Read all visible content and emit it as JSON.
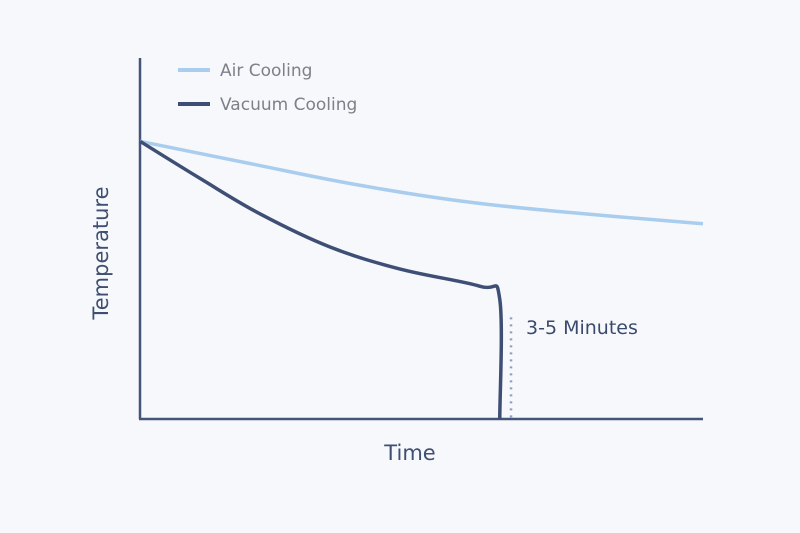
{
  "chart_data": {
    "type": "line",
    "title": "",
    "xlabel": "Time",
    "ylabel": "Temperature",
    "xlim": [
      0,
      100
    ],
    "ylim": [
      0,
      130
    ],
    "grid": false,
    "legend_position": "top-left",
    "series": [
      {
        "name": "Air Cooling",
        "color": "#a9cdee",
        "x": [
          0,
          19.5,
          37.3,
          55.1,
          72.9,
          100
        ],
        "y": [
          100,
          92,
          84.8,
          79,
          75,
          70.3
        ]
      },
      {
        "name": "Vacuum Cooling",
        "color": "#3e4e75",
        "x": [
          0,
          10.7,
          21.3,
          33.7,
          46.2,
          60.4,
          63.9,
          63.9
        ],
        "y": [
          100,
          86.6,
          73.9,
          62,
          54,
          47.8,
          43.1,
          0
        ]
      }
    ],
    "annotations": [
      {
        "text": "3-5 Minutes",
        "x": 65.9,
        "y_from": 0,
        "y_to": 36.6,
        "style": "dotted",
        "color": "#8e9ac8"
      }
    ],
    "axis_color": "#45557a"
  }
}
